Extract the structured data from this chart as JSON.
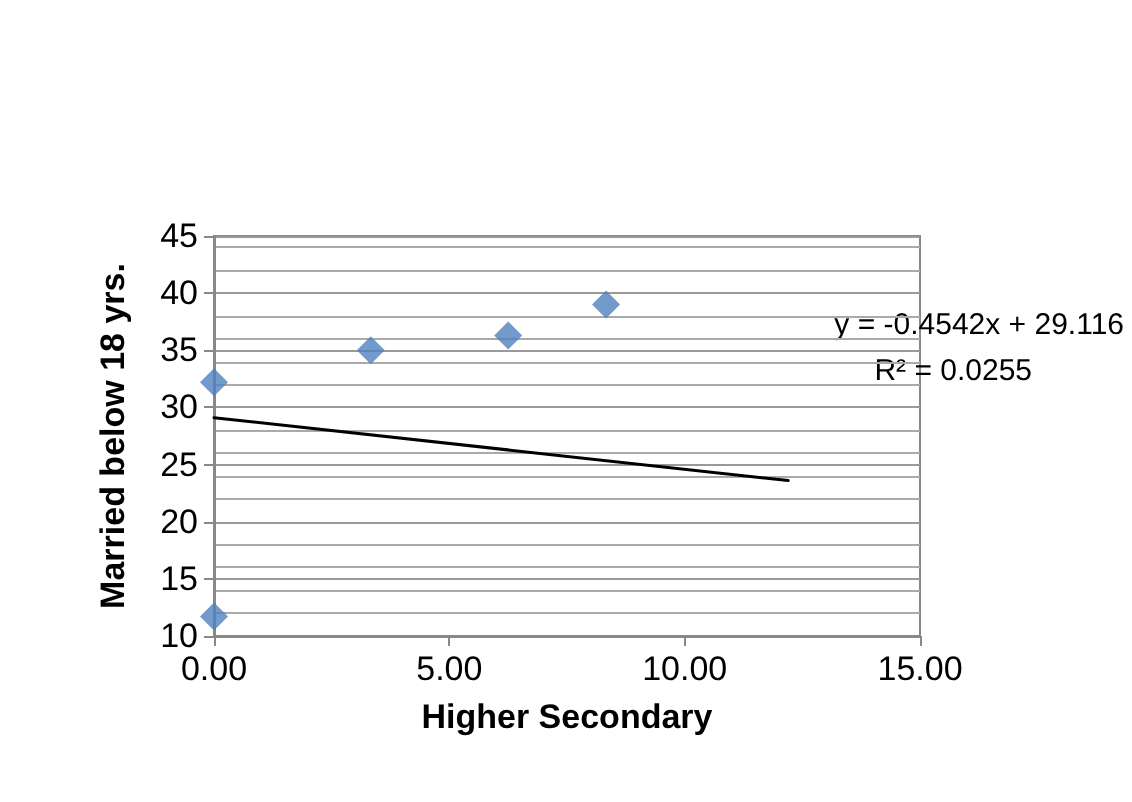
{
  "chart_data": {
    "type": "scatter",
    "xlabel": "Higher Secondary",
    "ylabel": "Married below 18 yrs.",
    "series": [
      {
        "color": "#4f81bd",
        "marker": "diamond",
        "x": [
          0,
          0,
          3.33,
          6.25,
          8.33
        ],
        "values": [
          32.2,
          11.7,
          35,
          36.3,
          39
        ]
      },
      {
        "type": "line",
        "color": "#000000",
        "marker": "none",
        "line_style": "solid",
        "x": [
          0,
          12.2
        ],
        "values": [
          29.1,
          23.6
        ]
      }
    ],
    "xlim": [
      0,
      15
    ],
    "xticks": [
      {
        "value": 0,
        "label": "0.00"
      },
      {
        "value": 5,
        "label": "5.00"
      },
      {
        "value": 10,
        "label": "10.00"
      },
      {
        "value": 15,
        "label": "15.00"
      }
    ],
    "ylim": [
      10,
      45
    ],
    "yticks": [
      10,
      15,
      20,
      25,
      30,
      35,
      40,
      45
    ],
    "annotations": [
      "y = -0.4542x + 29.116",
      "R² = 0.0255"
    ],
    "grid": "y"
  }
}
